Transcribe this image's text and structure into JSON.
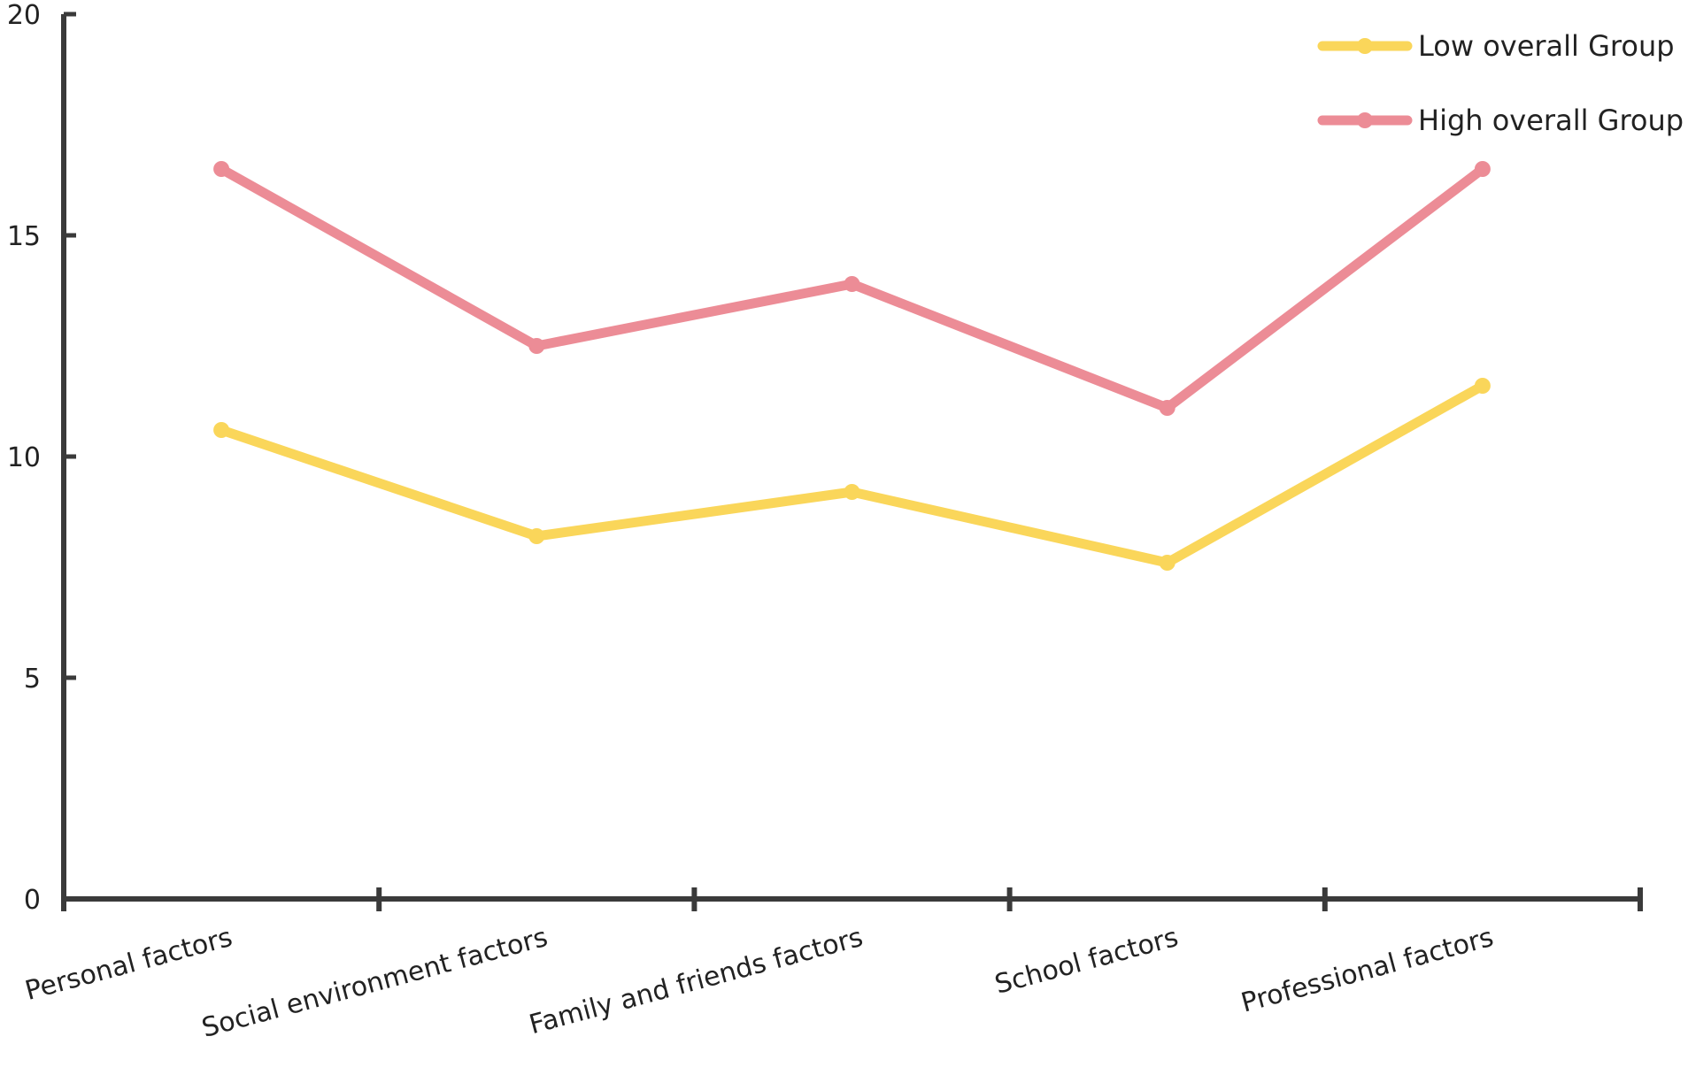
{
  "chart_data": {
    "type": "line",
    "title": "",
    "xlabel": "",
    "ylabel": "",
    "categories": [
      "Personal factors",
      "Social environment factors",
      "Family and friends factors",
      "School factors",
      "Professional factors"
    ],
    "series": [
      {
        "name": "Low overall Group",
        "color": "#FAD65A",
        "values": [
          10.6,
          8.2,
          9.2,
          7.6,
          11.6
        ]
      },
      {
        "name": "High overall Group",
        "color": "#EC8C96",
        "values": [
          16.5,
          12.5,
          13.9,
          11.1,
          16.5
        ]
      }
    ],
    "ylim": [
      0,
      20
    ],
    "yticks": [
      0,
      5,
      10,
      15,
      20
    ],
    "grid": false,
    "legend_position": "top-right",
    "axis_color": "#3A3A3A"
  }
}
